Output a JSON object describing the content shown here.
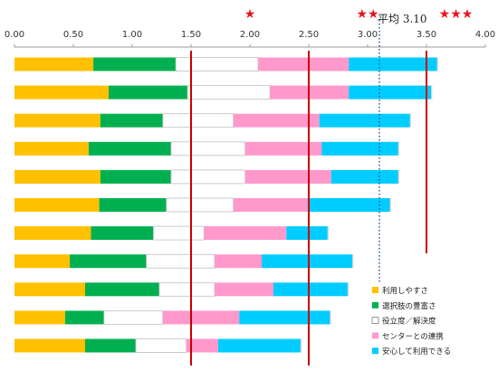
{
  "chart_data": {
    "type": "bar",
    "stacked": true,
    "orientation": "horizontal",
    "xlim": [
      0,
      4.0
    ],
    "x_ticks": [
      "0.00",
      "0.50",
      "1.00",
      "1.50",
      "2.00",
      "2.50",
      "3.00",
      "3.50",
      "4.00"
    ],
    "grid": false,
    "legend_position": "bottom-right",
    "series": [
      {
        "name": "利用しやすさ",
        "color": "#ffc000",
        "values": [
          0.67,
          0.8,
          0.73,
          0.63,
          0.73,
          0.72,
          0.65,
          0.47,
          0.6,
          0.43,
          0.6
        ]
      },
      {
        "name": "選択肢の豊富さ",
        "color": "#00b050",
        "values": [
          0.7,
          0.67,
          0.53,
          0.7,
          0.6,
          0.57,
          0.53,
          0.65,
          0.63,
          0.33,
          0.43
        ]
      },
      {
        "name": "役立度／解決度",
        "color": "#ffffff",
        "values": [
          0.7,
          0.7,
          0.6,
          0.63,
          0.63,
          0.57,
          0.43,
          0.58,
          0.47,
          0.5,
          0.43
        ]
      },
      {
        "name": "センターとの連携",
        "color": "#ff99cc",
        "values": [
          0.77,
          0.67,
          0.73,
          0.65,
          0.73,
          0.63,
          0.7,
          0.4,
          0.5,
          0.65,
          0.27
        ]
      },
      {
        "name": "安心して利用できる",
        "color": "#00ccff",
        "values": [
          0.75,
          0.7,
          0.77,
          0.65,
          0.57,
          0.7,
          0.35,
          0.77,
          0.63,
          0.77,
          0.7
        ]
      }
    ],
    "reference_lines": [
      {
        "value": 1.5,
        "style": "solid",
        "color": "#cc0000"
      },
      {
        "value": 2.5,
        "style": "solid",
        "color": "#cc0000"
      },
      {
        "value": 3.5,
        "style": "solid",
        "color": "#cc0000"
      },
      {
        "value": 3.1,
        "style": "dotted",
        "color": "#1f4e9e"
      }
    ],
    "average_label": "平均 3.10",
    "rating_stars": [
      {
        "value": 2.0,
        "text": "★"
      },
      {
        "value": 3.0,
        "text": "★★"
      },
      {
        "value": 3.75,
        "text": "★★★"
      }
    ]
  }
}
